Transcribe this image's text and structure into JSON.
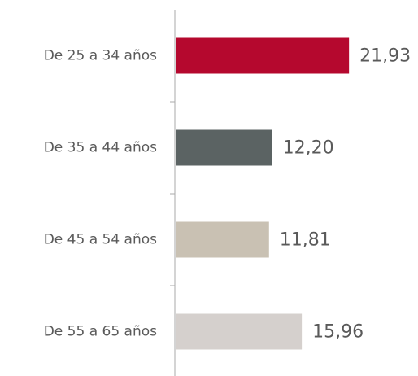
{
  "chart_data": {
    "type": "hbar",
    "categories": [
      "De 25 a 34 años",
      "De 35 a 44 años",
      "De 45 a 54 años",
      "De 55 a 65 años"
    ],
    "values": [
      21.93,
      12.2,
      11.81,
      15.96
    ],
    "value_labels": [
      "21,93",
      "12,20",
      "11,81",
      "15,96"
    ],
    "colors": [
      "#b5082e",
      "#5b6363",
      "#c9c1b3",
      "#d5d0cd"
    ]
  }
}
